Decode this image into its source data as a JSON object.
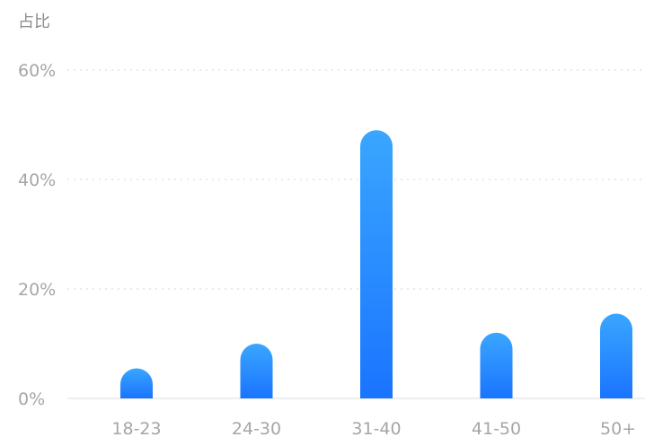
{
  "chart_data": {
    "type": "bar",
    "ylabel": "占比",
    "xlabel": "",
    "categories": [
      "18-23",
      "24-30",
      "31-40",
      "41-50",
      "50+"
    ],
    "values": [
      5.5,
      10,
      49,
      12,
      15.5
    ],
    "ylim": [
      0,
      60
    ],
    "yticks": [
      0,
      20,
      40,
      60
    ],
    "ytick_labels": [
      "0%",
      "20%",
      "40%",
      "60%"
    ],
    "grid": true,
    "colors": {
      "bar_top": "#3aa6ff",
      "bar_bottom": "#1a74ff"
    }
  }
}
